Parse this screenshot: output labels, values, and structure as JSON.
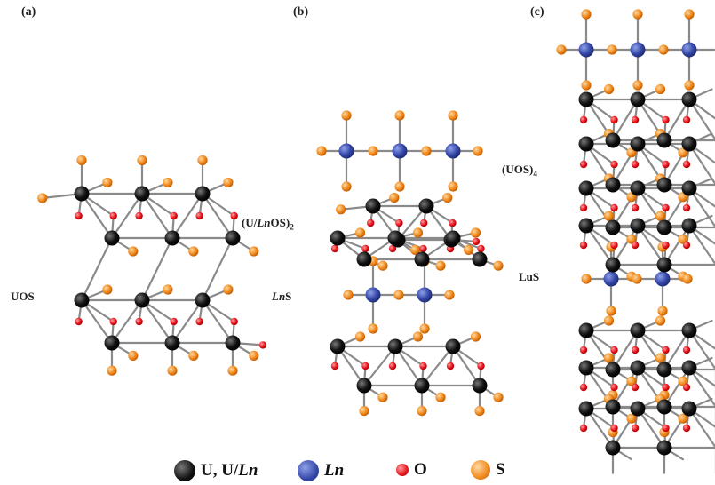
{
  "panels": {
    "a": {
      "label": "(a)",
      "slab_labels": [
        "UOS"
      ]
    },
    "b": {
      "label": "(b)",
      "slab_labels": [
        "(U/LnOS)2",
        "LnS"
      ]
    },
    "c": {
      "label": "(c)",
      "slab_labels": [
        "(UOS)4",
        "LuS"
      ]
    }
  },
  "legend": [
    {
      "label": "U, U/Ln",
      "color": "#111111"
    },
    {
      "label": "Ln",
      "color": "#3548a8"
    },
    {
      "label": "O",
      "color": "#e8141c"
    },
    {
      "label": "S",
      "color": "#f08a1e"
    }
  ],
  "colors": {
    "heavy_atom": "#111111",
    "ln_atom": "#3548a8",
    "oxygen": "#e8141c",
    "sulfur": "#f08a1e",
    "bond": "#8a8a8a"
  }
}
